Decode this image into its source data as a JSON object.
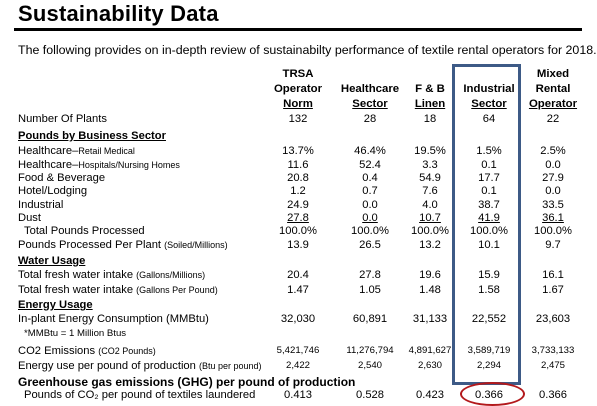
{
  "title": "Sustainability Data",
  "intro": "The following provides on in-depth review of sustainabilty performance of textile rental operators for 2018.",
  "columns": [
    {
      "lines": [
        "TRSA",
        "Operator",
        "Norm"
      ]
    },
    {
      "lines": [
        "",
        "Healthcare",
        "Sector"
      ]
    },
    {
      "lines": [
        "",
        "F & B",
        "Linen"
      ]
    },
    {
      "lines": [
        "",
        "Industrial",
        "Sector"
      ]
    },
    {
      "lines": [
        "Mixed",
        "Rental",
        "Operator"
      ]
    }
  ],
  "rows": [
    {
      "type": "data",
      "label": "Number Of Plants",
      "values": [
        "132",
        "28",
        "18",
        "64",
        "22"
      ]
    },
    {
      "type": "section",
      "label": "Pounds by Business Sector"
    },
    {
      "type": "data",
      "label": "Healthcare–",
      "label_small": "Retail Medical",
      "values": [
        "13.7%",
        "46.4%",
        "19.5%",
        "1.5%",
        "2.5%"
      ]
    },
    {
      "type": "data",
      "label": "Healthcare–",
      "label_small": "Hospitals/Nursing Homes",
      "values": [
        "11.6",
        "52.4",
        "3.3",
        "0.1",
        "0.0"
      ]
    },
    {
      "type": "data",
      "label": "Food & Beverage",
      "values": [
        "20.8",
        "0.4",
        "54.9",
        "17.7",
        "27.9"
      ]
    },
    {
      "type": "data",
      "label": "Hotel/Lodging",
      "values": [
        "1.2",
        "0.7",
        "7.6",
        "0.1",
        "0.0"
      ]
    },
    {
      "type": "data",
      "label": "Industrial",
      "values": [
        "24.9",
        "0.0",
        "4.0",
        "38.7",
        "33.5"
      ]
    },
    {
      "type": "data",
      "label": "Dust",
      "values": [
        "27.8",
        "0.0",
        "10.7",
        "41.9",
        "36.1"
      ],
      "underline": true
    },
    {
      "type": "data",
      "label": "Total Pounds Processed",
      "indent": true,
      "values": [
        "100.0%",
        "100.0%",
        "100.0%",
        "100.0%",
        "100.0%"
      ]
    },
    {
      "type": "data",
      "label": "Pounds Processed Per Plant ",
      "label_small": "(Soiled/Millions)",
      "values": [
        "13.9",
        "26.5",
        "13.2",
        "10.1",
        "9.7"
      ]
    },
    {
      "type": "section",
      "label": "Water Usage"
    },
    {
      "type": "data",
      "label": "Total fresh water intake ",
      "label_small": "(Gallons/Millions)",
      "values": [
        "20.4",
        "27.8",
        "19.6",
        "15.9",
        "16.1"
      ]
    },
    {
      "type": "data",
      "label": "Total fresh water intake ",
      "label_small": "(Gallons Per Pound)",
      "values": [
        "1.47",
        "1.05",
        "1.48",
        "1.58",
        "1.67"
      ]
    },
    {
      "type": "section",
      "label": "Energy Usage"
    },
    {
      "type": "data",
      "label": "In-plant Energy Consumption (MMBtu)",
      "values": [
        "32,030",
        "60,891",
        "31,133",
        "22,552",
        "23,603"
      ]
    },
    {
      "type": "note",
      "label": "*MMBtu = 1 Million Btus"
    },
    {
      "type": "data",
      "label": "CO2 Emissions ",
      "label_small": "(CO2 Pounds)",
      "values": [
        "5,421,746",
        "11,276,794",
        "4,891,627",
        "3,589,719",
        "3,733,133"
      ],
      "small_values": true
    },
    {
      "type": "data",
      "label": "Energy use per pound of production ",
      "label_small": "(Btu per pound)",
      "values": [
        "2,422",
        "2,540",
        "2,630",
        "2,294",
        "2,475"
      ],
      "small_values": true
    },
    {
      "type": "bigsection",
      "label": "Greenhouse gas emissions (GHG) per pound of production"
    },
    {
      "type": "data",
      "label": "Pounds of CO₂ per pound of textiles laundered",
      "indent": true,
      "values": [
        "0.413",
        "0.528",
        "0.423",
        "0.366",
        "0.366"
      ]
    }
  ],
  "highlight_color_box": "#3d5a86",
  "highlight_color_oval": "#b3191c"
}
